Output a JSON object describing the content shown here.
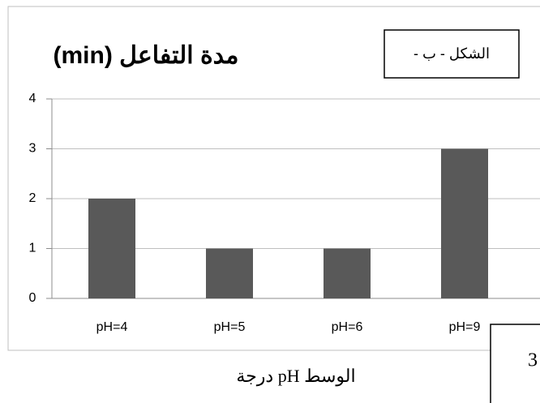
{
  "chart_data": {
    "type": "bar",
    "title": "مدة التفاعل (min)",
    "figure_label": "الشكل - ب -",
    "x_label": "درجة pH الوسط",
    "corner_label": "3",
    "categories": [
      "pH=4",
      "pH=5",
      "pH=6",
      "pH=9"
    ],
    "values": [
      2,
      1,
      1,
      3
    ],
    "color": "#595959",
    "ylim": [
      0,
      4
    ],
    "yticks": [
      0,
      1,
      2,
      3,
      4
    ],
    "grid": true
  }
}
